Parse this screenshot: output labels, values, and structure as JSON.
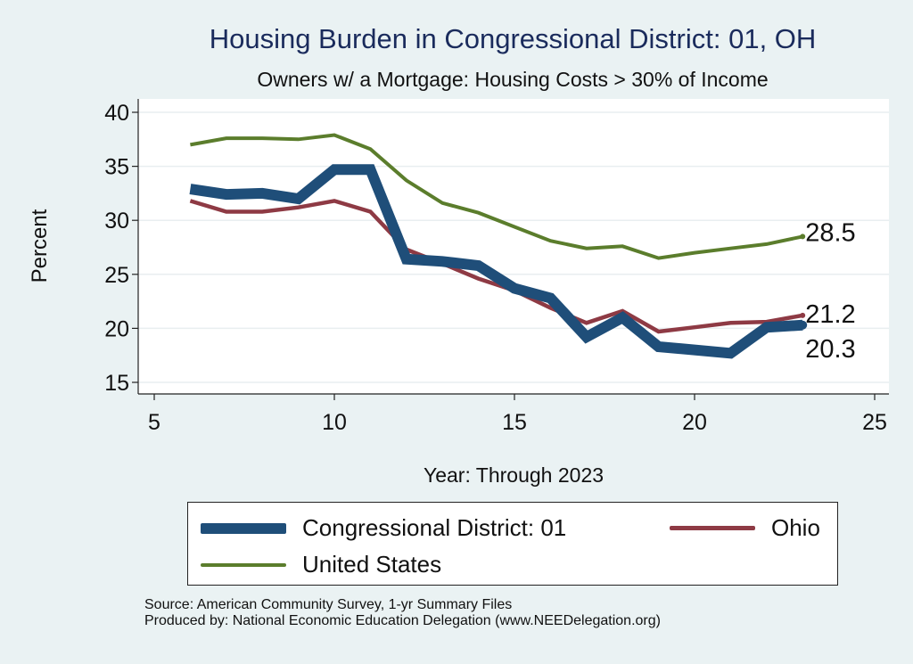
{
  "title": "Housing Burden in Congressional District:  01, OH",
  "subtitle": "Owners w/ a Mortgage: Housing Costs > 30% of Income",
  "source_lines": [
    "Source: American Community Survey, 1-yr Summary Files",
    "Produced by: National Economic Education Delegation (www.NEEDelegation.org)"
  ],
  "colors": {
    "background": "#eaf2f3",
    "plot_area": "#ffffff",
    "district": "#1f4e79",
    "ohio": "#8e3a44",
    "us": "#5b7d2c"
  },
  "chart_data": {
    "type": "line",
    "title": "Housing Burden in Congressional District:  01, OH",
    "subtitle": "Owners w/ a Mortgage: Housing Costs > 30% of Income",
    "xlabel": "Year: Through 2023",
    "ylabel": "Percent",
    "xlim": [
      5,
      25
    ],
    "ylim": [
      14,
      41
    ],
    "xticks": [
      5,
      10,
      15,
      20,
      25
    ],
    "yticks": [
      15,
      20,
      25,
      30,
      35,
      40
    ],
    "grid": true,
    "legend_position": "bottom",
    "x": [
      6,
      7,
      8,
      9,
      10,
      11,
      12,
      13,
      14,
      15,
      16,
      17,
      18,
      19,
      20,
      21,
      22,
      23
    ],
    "series": [
      {
        "name": "Congressional District:  01",
        "color": "#1f4e79",
        "values": [
          32.9,
          32.4,
          32.5,
          32.0,
          34.7,
          34.7,
          26.4,
          26.2,
          25.8,
          23.7,
          22.8,
          19.2,
          21.0,
          18.3,
          18.0,
          17.7,
          20.1,
          20.3
        ],
        "end_label": "20.3"
      },
      {
        "name": "Ohio",
        "color": "#8e3a44",
        "values": [
          31.8,
          30.8,
          30.8,
          31.2,
          31.8,
          30.8,
          27.3,
          26.0,
          24.6,
          23.5,
          21.9,
          20.5,
          21.6,
          19.7,
          20.1,
          20.5,
          20.6,
          21.2
        ],
        "end_label": "21.2"
      },
      {
        "name": "United States",
        "color": "#5b7d2c",
        "values": [
          37.0,
          37.6,
          37.6,
          37.5,
          37.9,
          36.6,
          33.7,
          31.6,
          30.7,
          29.4,
          28.1,
          27.4,
          27.6,
          26.5,
          27.0,
          27.4,
          27.8,
          28.5
        ],
        "end_label": "28.5"
      }
    ]
  }
}
